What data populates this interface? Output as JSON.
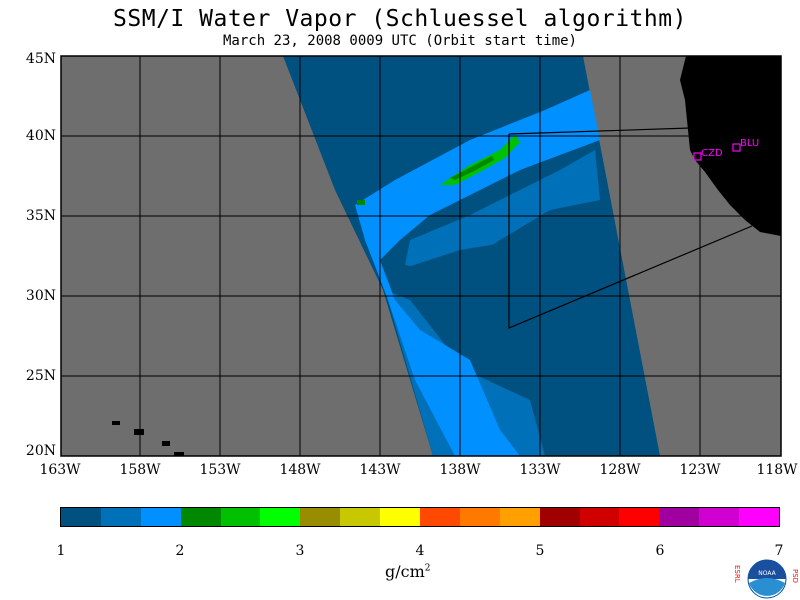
{
  "title": "SSM/I Water Vapor (Schluessel algorithm)",
  "subtitle": "March 23, 2008  0009 UTC  (Orbit start time)",
  "lat_labels": [
    "45N",
    "40N",
    "35N",
    "30N",
    "25N",
    "20N"
  ],
  "lon_labels": [
    "163W",
    "158W",
    "153W",
    "148W",
    "143W",
    "138W",
    "133W",
    "128W",
    "123W",
    "118W"
  ],
  "stations": [
    "CZD",
    "BLU"
  ],
  "colorbar": {
    "colors": [
      "#005080",
      "#0070b8",
      "#0090ff",
      "#008800",
      "#00c000",
      "#00ff00",
      "#988c00",
      "#c8c800",
      "#ffff00",
      "#ff4800",
      "#ff7800",
      "#ffa000",
      "#a00000",
      "#d00000",
      "#ff0000",
      "#a000a0",
      "#d000d0",
      "#ff00ff"
    ],
    "tick_labels": [
      "1",
      "2",
      "3",
      "4",
      "5",
      "6",
      "7"
    ],
    "units": "g/cm",
    "units_exp": "2"
  },
  "logo": {
    "left_letters": "ESRL",
    "right_letters": "PSD",
    "center": "NOAA"
  },
  "colors": {
    "no_data": "#6e6e6e",
    "land": "#000000",
    "station": "#ff00ff"
  }
}
